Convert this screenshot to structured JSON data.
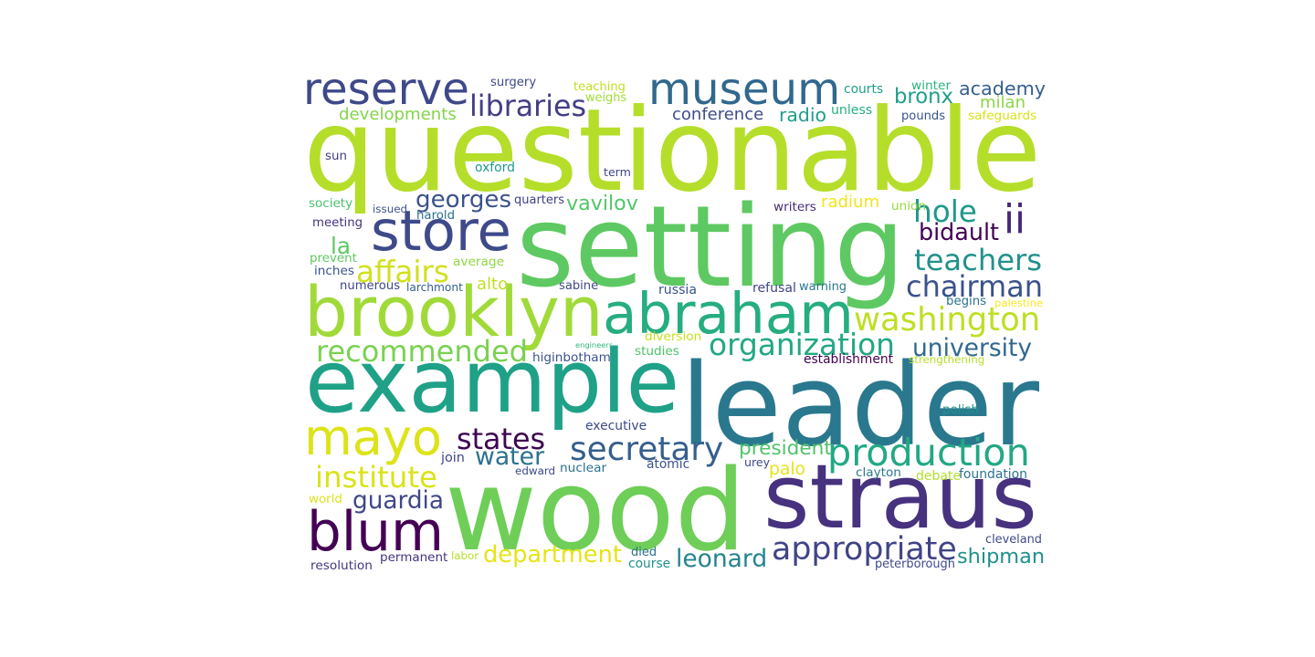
{
  "words": [
    {
      "text": "questionable",
      "color": "#b5de2b"
    },
    {
      "text": "setting",
      "color": "#5ec962"
    },
    {
      "text": "leader",
      "color": "#2a788e"
    },
    {
      "text": "wood",
      "color": "#6ece58"
    },
    {
      "text": "example",
      "color": "#1fa187"
    },
    {
      "text": "straus",
      "color": "#46327e"
    },
    {
      "text": "brooklyn",
      "color": "#a0da39"
    },
    {
      "text": "abraham",
      "color": "#26ad81"
    },
    {
      "text": "museum",
      "color": "#31688e"
    },
    {
      "text": "reserve",
      "color": "#3e4989"
    },
    {
      "text": "blum",
      "color": "#440154"
    },
    {
      "text": "mayo",
      "color": "#dde318"
    },
    {
      "text": "store",
      "color": "#3e4a89"
    },
    {
      "text": "production",
      "color": "#22a884"
    },
    {
      "text": "appropriate",
      "color": "#414487"
    },
    {
      "text": "libraries",
      "color": "#433e85"
    },
    {
      "text": "secretary",
      "color": "#355f8d"
    },
    {
      "text": "recommended",
      "color": "#7ad151"
    },
    {
      "text": "organization",
      "color": "#22a884"
    },
    {
      "text": "washington",
      "color": "#bddf26"
    },
    {
      "text": "chairman",
      "color": "#3b528b"
    },
    {
      "text": "teachers",
      "color": "#21918c"
    },
    {
      "text": "institute",
      "color": "#dae319"
    },
    {
      "text": "department",
      "color": "#e5e419"
    },
    {
      "text": "states",
      "color": "#3e0751"
    },
    {
      "text": "affairs",
      "color": "#d0e11c"
    },
    {
      "text": "hole",
      "color": "#1f988b"
    },
    {
      "text": "leonard",
      "color": "#25848e"
    },
    {
      "text": "university",
      "color": "#31688e"
    },
    {
      "text": "ii",
      "color": "#482878"
    },
    {
      "text": "georges",
      "color": "#3b528b"
    },
    {
      "text": "water",
      "color": "#2c728e"
    },
    {
      "text": "guardia",
      "color": "#3f4788"
    },
    {
      "text": "shipman",
      "color": "#21918c"
    },
    {
      "text": "bidault",
      "color": "#440154"
    },
    {
      "text": "vavilov",
      "color": "#52c569"
    },
    {
      "text": "president",
      "color": "#50c46a"
    },
    {
      "text": "bronx",
      "color": "#1f9e89"
    },
    {
      "text": "academy",
      "color": "#355f8d"
    },
    {
      "text": "developments",
      "color": "#84d44b"
    },
    {
      "text": "conference",
      "color": "#3e4c8a"
    },
    {
      "text": "milan",
      "color": "#8bd646"
    },
    {
      "text": "radio",
      "color": "#1f9e89"
    },
    {
      "text": "la",
      "color": "#5ec962"
    },
    {
      "text": "radium",
      "color": "#f1e51d"
    },
    {
      "text": "alto",
      "color": "#c2df23"
    },
    {
      "text": "palo",
      "color": "#e7e419"
    },
    {
      "text": "surgery",
      "color": "#3e4989"
    },
    {
      "text": "teaching",
      "color": "#c0df25"
    },
    {
      "text": "weighs",
      "color": "#a0da39"
    },
    {
      "text": "courts",
      "color": "#1f9e89"
    },
    {
      "text": "winter",
      "color": "#2db27d"
    },
    {
      "text": "unless",
      "color": "#28ae80"
    },
    {
      "text": "pounds",
      "color": "#39568c"
    },
    {
      "text": "safeguards",
      "color": "#d8e219"
    },
    {
      "text": "sun",
      "color": "#433d84"
    },
    {
      "text": "oxford",
      "color": "#1f9a8a"
    },
    {
      "text": "term",
      "color": "#404688"
    },
    {
      "text": "society",
      "color": "#4ac16d"
    },
    {
      "text": "issued",
      "color": "#3b528b"
    },
    {
      "text": "quarters",
      "color": "#424086"
    },
    {
      "text": "harold",
      "color": "#2c718e"
    },
    {
      "text": "writers",
      "color": "#472d7b"
    },
    {
      "text": "union",
      "color": "#95d840"
    },
    {
      "text": "meeting",
      "color": "#46327e"
    },
    {
      "text": "prevent",
      "color": "#5ec962"
    },
    {
      "text": "average",
      "color": "#8fd744"
    },
    {
      "text": "inches",
      "color": "#3b528b"
    },
    {
      "text": "numerous",
      "color": "#3f4788"
    },
    {
      "text": "larchmont",
      "color": "#355f8d"
    },
    {
      "text": "sabine",
      "color": "#3e4a89"
    },
    {
      "text": "russia",
      "color": "#3b518b"
    },
    {
      "text": "refusal",
      "color": "#3f4788"
    },
    {
      "text": "warning",
      "color": "#2a788e"
    },
    {
      "text": "begins",
      "color": "#2c728e"
    },
    {
      "text": "palestine",
      "color": "#fde725"
    },
    {
      "text": "engineers",
      "color": "#2fb47c"
    },
    {
      "text": "diversion",
      "color": "#c8e020"
    },
    {
      "text": "studies",
      "color": "#4ec36b"
    },
    {
      "text": "higinbotham",
      "color": "#3b528b"
    },
    {
      "text": "establishment",
      "color": "#440154"
    },
    {
      "text": "strengthening",
      "color": "#b5de2b"
    },
    {
      "text": "polish",
      "color": "#21918c"
    },
    {
      "text": "executive",
      "color": "#3e4a89"
    },
    {
      "text": "join",
      "color": "#404688"
    },
    {
      "text": "nuclear",
      "color": "#2d708e"
    },
    {
      "text": "atomic",
      "color": "#3b528b"
    },
    {
      "text": "edward",
      "color": "#3e4989"
    },
    {
      "text": "urey",
      "color": "#3e4989"
    },
    {
      "text": "clayton",
      "color": "#2a788e"
    },
    {
      "text": "debate",
      "color": "#b2dd2d"
    },
    {
      "text": "foundation",
      "color": "#2c728e"
    },
    {
      "text": "world",
      "color": "#dce319"
    },
    {
      "text": "labor",
      "color": "#b5de2b"
    },
    {
      "text": "died",
      "color": "#2c728e"
    },
    {
      "text": "course",
      "color": "#21918c"
    },
    {
      "text": "cleveland",
      "color": "#3e4a89"
    },
    {
      "text": "peterborough",
      "color": "#3e4989"
    },
    {
      "text": "permanent",
      "color": "#46327e"
    },
    {
      "text": "resolution",
      "color": "#453781"
    }
  ]
}
